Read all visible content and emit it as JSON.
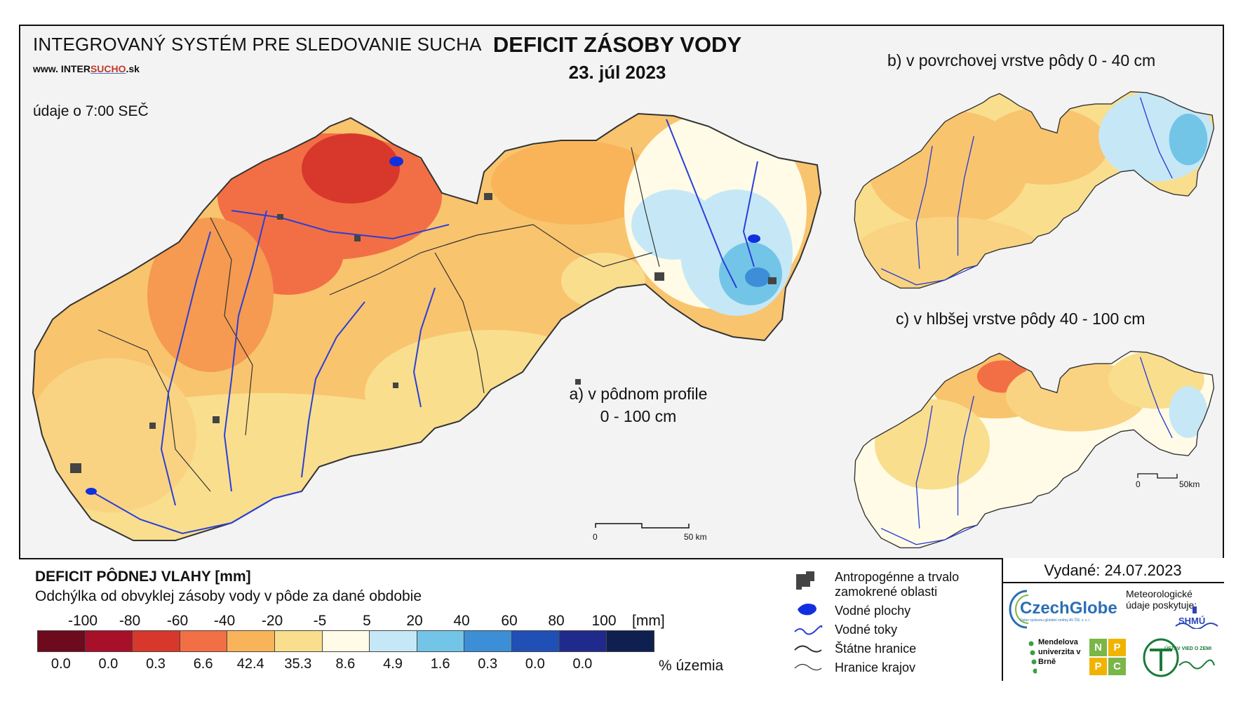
{
  "header": {
    "system_title": "INTEGROVANÝ SYSTÉM PRE SLEDOVANIE SUCHA",
    "url_prefix": "www. INTER",
    "url_highlight": "SUCHO",
    "url_suffix": ".sk",
    "time_note": "údaje o 7:00 SEČ",
    "main_title": "DEFICIT ZÁSOBY VODY",
    "main_date": "23. júl 2023"
  },
  "maps": {
    "a_label_line1": "a) v pôdnom profile",
    "a_label_line2": "0 - 100 cm",
    "b_label": "b) v povrchovej vrstve pôdy 0 - 40 cm",
    "c_label": "c) v hlbšej vrstve pôdy 40 - 100 cm",
    "scale_main": {
      "start": "0",
      "end": "50 km"
    },
    "scale_small": {
      "start": "0",
      "end": "50km"
    }
  },
  "legend": {
    "title": "DEFICIT PÔDNEJ VLAHY [mm]",
    "subtitle": "Odchýlka od obvyklej zásoby vody v pôde za dané obdobie",
    "thresholds": [
      "-100",
      "-80",
      "-60",
      "-40",
      "-20",
      "-5",
      "5",
      "20",
      "40",
      "60",
      "80",
      "100"
    ],
    "unit": "[mm]",
    "classes": [
      {
        "color": "#6d0a1e",
        "percent": "0.0"
      },
      {
        "color": "#a8102a",
        "percent": "0.0"
      },
      {
        "color": "#d8382c",
        "percent": "0.3"
      },
      {
        "color": "#f26f45",
        "percent": "6.6"
      },
      {
        "color": "#f9b45a",
        "percent": "42.4"
      },
      {
        "color": "#f9de8e",
        "percent": "35.3"
      },
      {
        "color": "#fffbe6",
        "percent": "8.6"
      },
      {
        "color": "#c6e8f6",
        "percent": "4.9"
      },
      {
        "color": "#73c5e8",
        "percent": "1.6"
      },
      {
        "color": "#3c8fd6",
        "percent": "0.3"
      },
      {
        "color": "#2050b6",
        "percent": "0.0"
      },
      {
        "color": "#1f2a8c",
        "percent": "0.0"
      },
      {
        "color": "#0f1f50",
        "percent": ""
      }
    ],
    "percent_label": "% územia"
  },
  "side_legend": {
    "anthropogenic_line1": "Antropogénne a trvalo",
    "anthropogenic_line2": "zamokrené oblasti",
    "water_bodies": "Vodné plochy",
    "rivers": "Vodné toky",
    "state_borders": "Štátne hranice",
    "region_borders": "Hranice krajov"
  },
  "credits": {
    "issued": "Vydané: 24.07.2023",
    "czechglobe": "CzechGlobe",
    "czechglobe_sub": "Ústav výzkumu globální změny AV ČR, v. v. i.",
    "meteo_note": "Meteorologické údaje poskytuje:",
    "shmu": "SHMÚ",
    "mendel": "Mendelova univerzita v Brně",
    "nppc": [
      "N",
      "P",
      "P",
      "C"
    ],
    "uvz": "ÚSTAV VIED O ZEMI"
  },
  "colors": {
    "river": "#2a3fd8",
    "border": "#333333",
    "urban": "#444444"
  }
}
